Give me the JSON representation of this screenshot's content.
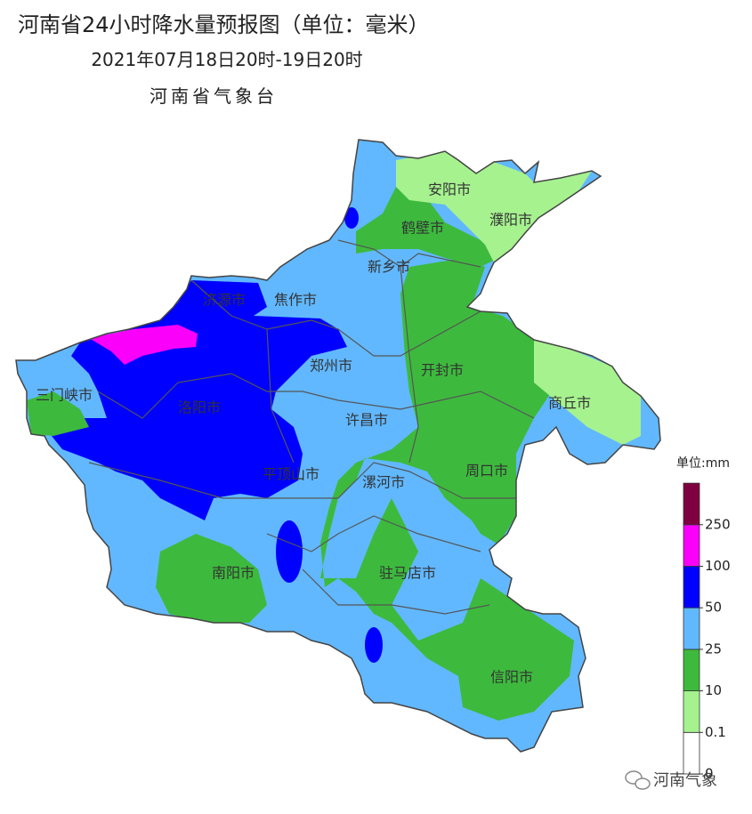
{
  "header": {
    "title": "河南省24小时降水量预报图（单位：毫米）",
    "period": "2021年07月18日20时-19日20时",
    "issuer": "河南省气象台"
  },
  "cities": [
    "安阳市",
    "鹤壁市",
    "濮阳市",
    "新乡市",
    "济源市",
    "焦作市",
    "郑州市",
    "开封市",
    "三门峡市",
    "洛阳市",
    "许昌市",
    "商丘市",
    "平顶山市",
    "漯河市",
    "周口市",
    "南阳市",
    "驻马店市",
    "信阳市"
  ],
  "legend": {
    "unit": "单位:mm",
    "ticks": [
      0,
      0.1,
      10,
      25,
      50,
      100,
      250
    ],
    "colors": [
      "#ffffff",
      "#a6f28f",
      "#3dba3d",
      "#61b8ff",
      "#0000fe",
      "#fa00fa",
      "#7f0040"
    ]
  },
  "watermark": "河南气象"
}
